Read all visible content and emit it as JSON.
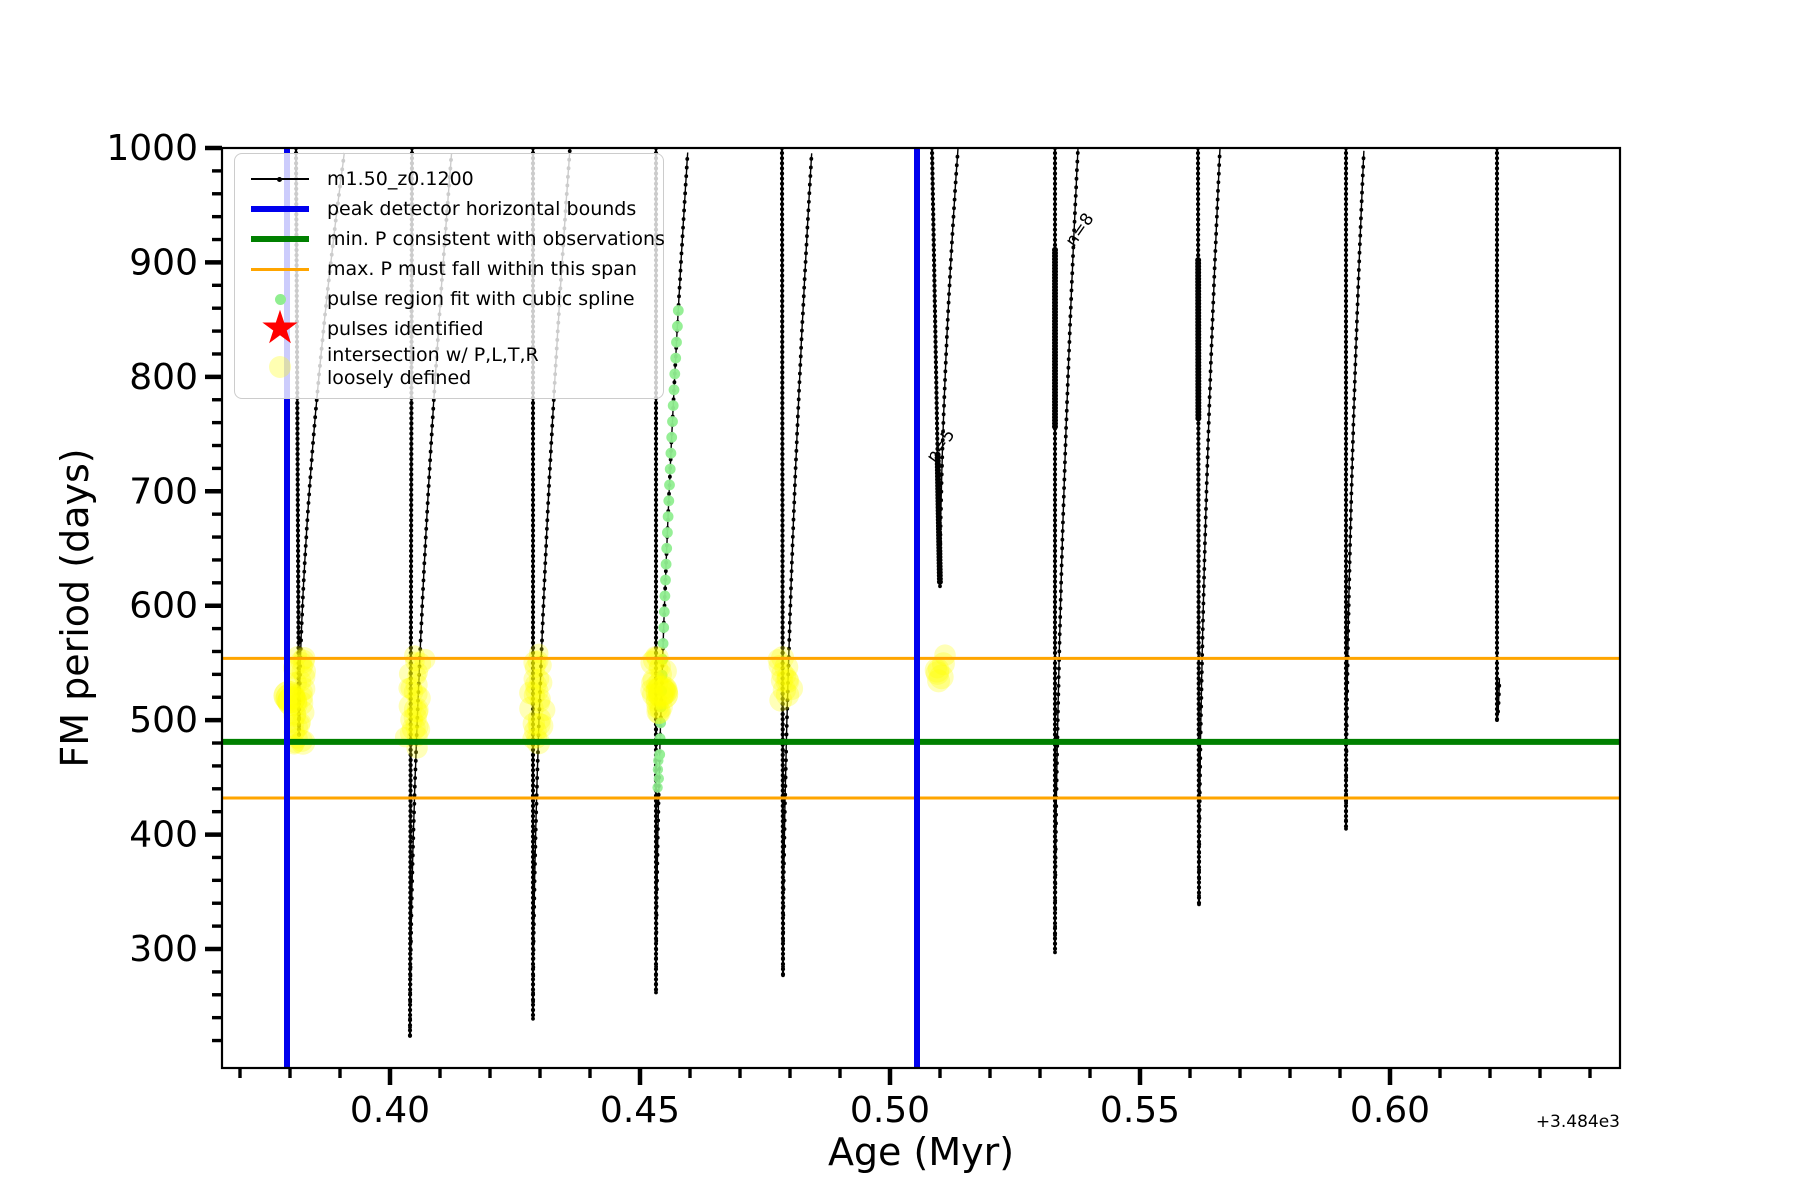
{
  "chart_data": {
    "type": "line",
    "title": "",
    "xlabel": "Age (Myr)",
    "ylabel": "FM period (days)",
    "x_offset_text": "+3.484e3",
    "xlim": [
      0.3664,
      0.646
    ],
    "ylim": [
      196,
      1000
    ],
    "x_major_ticks": [
      {
        "value": 0.4,
        "label": "0.40"
      },
      {
        "value": 0.45,
        "label": "0.45"
      },
      {
        "value": 0.5,
        "label": "0.50"
      },
      {
        "value": 0.55,
        "label": "0.55"
      },
      {
        "value": 0.6,
        "label": "0.60"
      }
    ],
    "x_minor_step": 0.01,
    "y_major_ticks": [
      {
        "value": 300,
        "label": "300"
      },
      {
        "value": 400,
        "label": "400"
      },
      {
        "value": 500,
        "label": "500"
      },
      {
        "value": 600,
        "label": "600"
      },
      {
        "value": 700,
        "label": "700"
      },
      {
        "value": 800,
        "label": "800"
      },
      {
        "value": 900,
        "label": "900"
      },
      {
        "value": 1000,
        "label": "1000"
      }
    ],
    "y_minor_step": 20,
    "grid": false,
    "colors": {
      "series_black": "#000000",
      "peak_bounds_blue": "#0000ee",
      "min_p_green": "#008000",
      "max_p_orange": "#ffa500",
      "spline_lightgreen": "#90ee90",
      "pulse_star_red": "#ff0000",
      "intersection_yellow": "rgba(255,255,0,0.28)"
    },
    "hlines": {
      "min_p_green_days": 481,
      "max_p_orange_days": [
        554,
        432
      ]
    },
    "vlines_blue_age": [
      0.3794,
      0.5054
    ],
    "legend_position": "upper-left",
    "legend": [
      {
        "marker": "line-dot-black",
        "label": "m1.50_z0.1200"
      },
      {
        "marker": "line-blue",
        "label": "peak detector horizontal bounds"
      },
      {
        "marker": "line-green",
        "label": "min. P consistent with observations"
      },
      {
        "marker": "line-orange",
        "label": "max. P must fall within this span"
      },
      {
        "marker": "dot-green",
        "label": "pulse region fit with cubic spline"
      },
      {
        "marker": "star-red",
        "label": "pulses identified"
      },
      {
        "marker": "dot-yellow",
        "label": "intersection w/ P,L,T,R",
        "label2": "loosely defined"
      }
    ],
    "annotations": [
      {
        "text": "n=5",
        "age": 0.5102,
        "days": 740,
        "rotation_deg": -55
      },
      {
        "text": "n=8",
        "age": 0.538,
        "days": 928,
        "rotation_deg": -55
      }
    ],
    "pulses": [
      {
        "age": 0.3812,
        "tip_age": 0.3818,
        "tip_days": 487,
        "asc_top_age": 0.391,
        "blob_days": null
      },
      {
        "age": 0.4044,
        "tip_age": 0.404,
        "tip_days": 224,
        "asc_top_age": 0.4124,
        "blob_days": null
      },
      {
        "age": 0.4286,
        "tip_age": 0.4286,
        "tip_days": 239,
        "asc_top_age": 0.436,
        "blob_days": null
      },
      {
        "age": 0.4532,
        "tip_age": 0.4532,
        "tip_days": 262,
        "asc_top_age": 0.4596,
        "blob_days": null
      },
      {
        "age": 0.4784,
        "tip_age": 0.4786,
        "tip_days": 277,
        "asc_top_age": 0.4844,
        "blob_days": null
      },
      {
        "age": 0.5084,
        "tip_age": 0.51,
        "tip_days": 617,
        "asc_top_age": 0.5136,
        "blob_days": [
          620,
          732
        ]
      },
      {
        "age": 0.533,
        "tip_age": 0.533,
        "tip_days": 297,
        "asc_top_age": 0.5376,
        "blob_days": [
          754,
          911
        ]
      },
      {
        "age": 0.5616,
        "tip_age": 0.5618,
        "tip_days": 339,
        "asc_top_age": 0.566,
        "blob_days": [
          762,
          902
        ]
      },
      {
        "age": 0.5912,
        "tip_age": 0.5912,
        "tip_days": 405,
        "asc_top_age": 0.5948,
        "blob_days": null
      },
      {
        "age": 0.6214,
        "tip_age": 0.6214,
        "tip_days": 500,
        "asc_top_age": null,
        "blob_days": null
      }
    ],
    "yellow_clusters": [
      {
        "pulse": 0,
        "age_lo": 0.3784,
        "age_hi": 0.3838,
        "days_lo": 477,
        "days_hi": 556,
        "n": 30,
        "blob": {
          "age": 0.38,
          "days": 517
        }
      },
      {
        "pulse": 1,
        "age_lo": 0.4028,
        "age_hi": 0.4078,
        "days_lo": 479,
        "days_hi": 556,
        "n": 26,
        "blob": null
      },
      {
        "pulse": 2,
        "age_lo": 0.4274,
        "age_hi": 0.4322,
        "days_lo": 481,
        "days_hi": 556,
        "n": 24,
        "blob": null
      },
      {
        "pulse": 3,
        "age_lo": 0.4512,
        "age_hi": 0.4568,
        "days_lo": 503,
        "days_hi": 556,
        "n": 24,
        "blob": {
          "age": 0.4542,
          "days": 522
        }
      },
      {
        "pulse": 4,
        "age_lo": 0.4768,
        "age_hi": 0.481,
        "days_lo": 521,
        "days_hi": 556,
        "n": 13,
        "blob": null
      },
      {
        "pulse": 5,
        "age_lo": 0.5046,
        "age_hi": 0.507,
        "days_lo": 532,
        "days_hi": 556,
        "n": 7,
        "blob": null
      }
    ],
    "spline_fit": {
      "pulse": 3,
      "days_lo": 470,
      "days_hi": 858,
      "n_points": 29
    }
  }
}
